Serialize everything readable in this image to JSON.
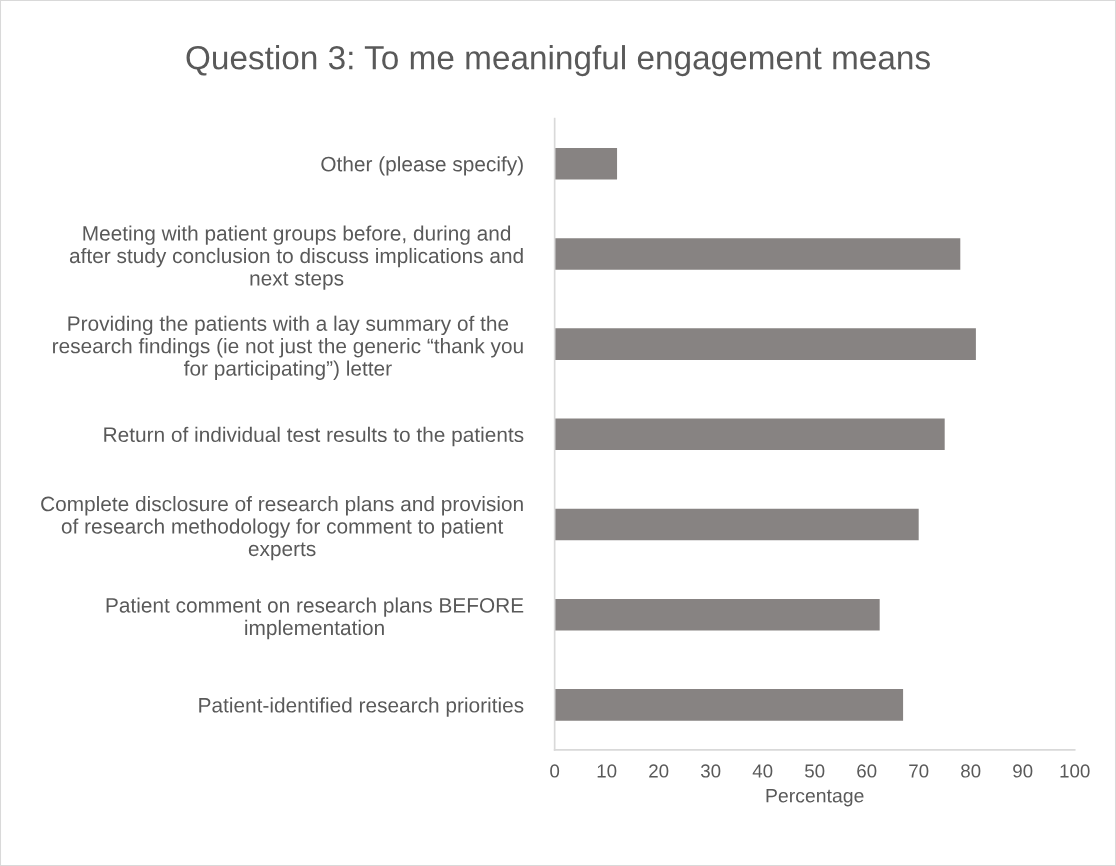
{
  "chart_data": {
    "type": "bar",
    "orientation": "horizontal",
    "title": "Question 3: To me meaningful engagement means",
    "xlabel": "Percentage",
    "categories": [
      "Other (please specify)",
      "Meeting with patient groups before, during and\nafter study conclusion to discuss implications and\nnext steps",
      "Providing the patients with a lay summary of the\nresearch findings (ie not just the generic “thank you\nfor participating”) letter",
      "Return of individual test results to the patients",
      "Complete disclosure of research plans and provision\nof research methodology for comment to patient\nexperts",
      "Patient comment on research plans BEFORE\nimplementation",
      "Patient-identified research priorities"
    ],
    "values": [
      12,
      78,
      81,
      75,
      70,
      62.5,
      67
    ],
    "color": "#878382",
    "xlim": [
      0,
      100
    ],
    "xticks": [
      0,
      10,
      20,
      30,
      40,
      50,
      60,
      70,
      80,
      90,
      100
    ]
  }
}
